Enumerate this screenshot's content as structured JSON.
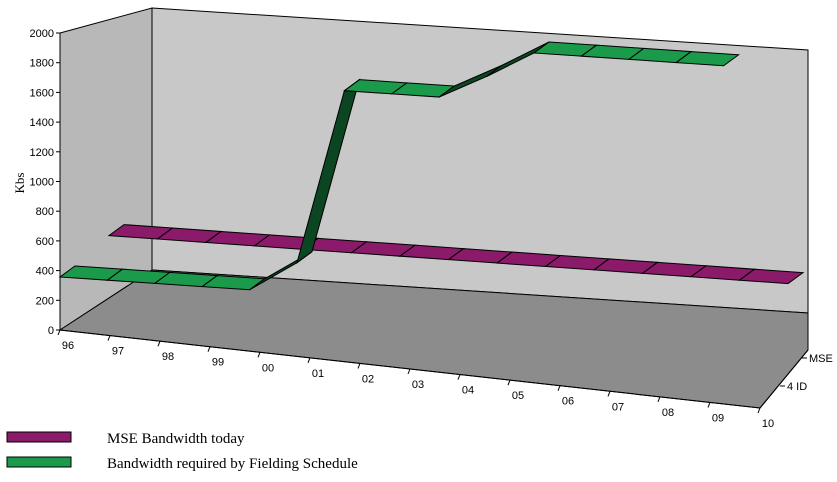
{
  "chart_data": {
    "type": "ribbon-3d",
    "ylabel": "Kbs",
    "ylim": [
      0,
      2000
    ],
    "yticks": [
      0,
      200,
      400,
      600,
      800,
      1000,
      1200,
      1400,
      1600,
      1800,
      2000
    ],
    "categories": [
      "96",
      "97",
      "98",
      "99",
      "00",
      "01",
      "02",
      "03",
      "04",
      "05",
      "06",
      "07",
      "08",
      "09",
      "10"
    ],
    "depth_labels": [
      "MSE",
      "4 ID"
    ],
    "legend_position": "bottom-left",
    "series": [
      {
        "name": "MSE Bandwidth today",
        "color": "#8b1a6b",
        "values": [
          400,
          400,
          400,
          400,
          400,
          400,
          400,
          400,
          400,
          400,
          400,
          400,
          400,
          400,
          400
        ]
      },
      {
        "name": "Bandwidth required by Fielding Schedule",
        "color": "#1a9a4a",
        "values": [
          256,
          256,
          256,
          256,
          256,
          460,
          1640,
          1640,
          1640,
          1800,
          1980,
          1980,
          1980,
          1980,
          1980
        ]
      }
    ]
  }
}
